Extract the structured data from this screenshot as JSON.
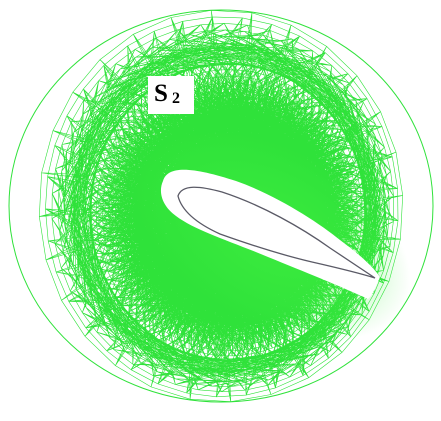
{
  "figure": {
    "label": {
      "main": "S",
      "subscript": "2"
    },
    "colors": {
      "mesh": "#2fe23a",
      "mesh_dense": "#45ee45",
      "background": "#ffffff",
      "airfoil_outline": "#5a5a66",
      "label_text": "#000000"
    }
  }
}
